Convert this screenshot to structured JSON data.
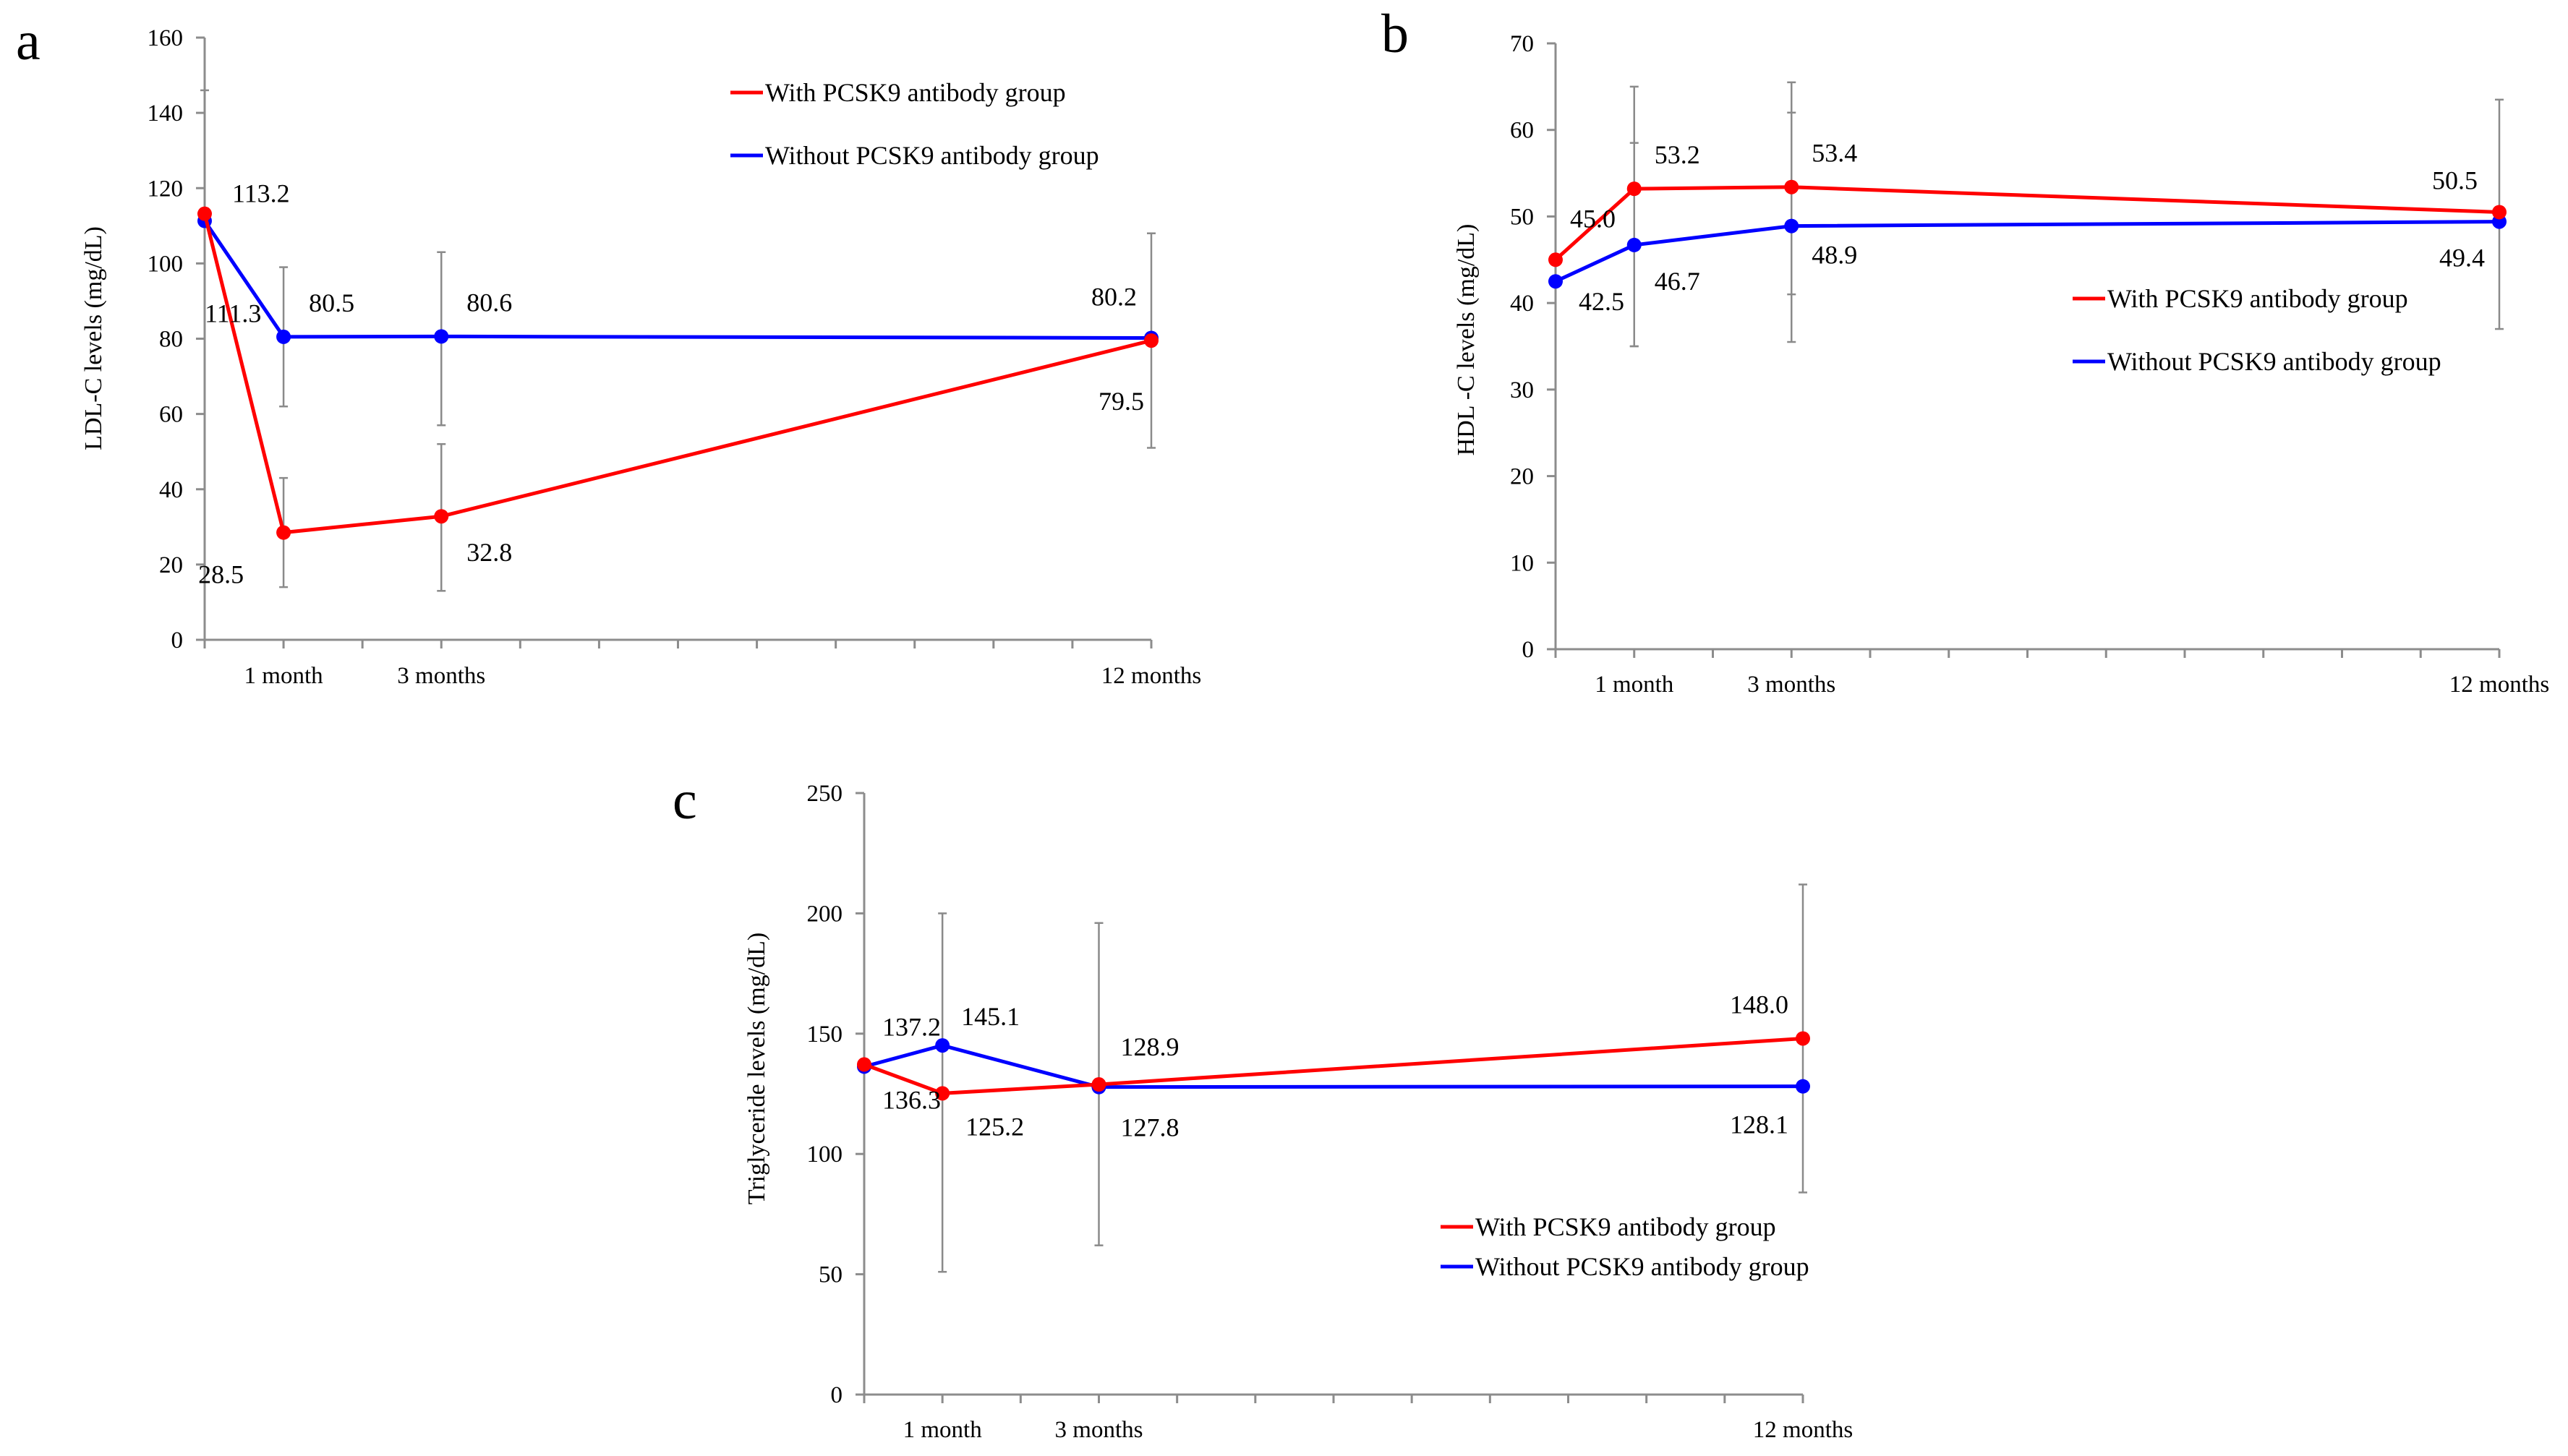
{
  "chart_data": [
    {
      "panel_label": "a",
      "type": "line",
      "ylabel": "LDL-C levels (mg/dL)",
      "ylim": [
        0,
        160
      ],
      "yticks": [
        0,
        20,
        40,
        60,
        80,
        100,
        120,
        140,
        160
      ],
      "x_labels": [
        "",
        "1 month",
        "3 months",
        "12 months"
      ],
      "x_values": [
        0,
        1,
        3,
        12
      ],
      "series": [
        {
          "name": "With PCSK9 antibody group",
          "color": "#ff0000",
          "values": [
            113.2,
            28.5,
            32.8,
            79.5
          ],
          "labels": [
            "113.2",
            "28.5",
            "32.8",
            "79.5"
          ],
          "err_low": [
            null,
            14,
            13,
            51
          ],
          "err_high": [
            null,
            43,
            52,
            108
          ]
        },
        {
          "name": "Without PCSK9 antibody group",
          "color": "#0000ff",
          "values": [
            111.3,
            80.5,
            80.6,
            80.2
          ],
          "labels": [
            "111.3",
            "80.5",
            "80.6",
            "80.2"
          ],
          "err_low": [
            null,
            62,
            57,
            null
          ],
          "err_high": [
            146,
            99,
            103,
            null
          ]
        }
      ]
    },
    {
      "panel_label": "b",
      "type": "line",
      "ylabel": "HDL -C levels (mg/dL)",
      "ylim": [
        0,
        70
      ],
      "yticks": [
        0,
        10,
        20,
        30,
        40,
        50,
        60,
        70
      ],
      "x_labels": [
        "",
        "1 month",
        "3 months",
        "12 months"
      ],
      "x_values": [
        0,
        1,
        3,
        12
      ],
      "series": [
        {
          "name": "With PCSK9 antibody group",
          "color": "#ff0000",
          "values": [
            45.0,
            53.2,
            53.4,
            50.5
          ],
          "labels": [
            "45.0",
            "53.2",
            "53.4",
            "50.5"
          ],
          "err_low": [
            null,
            35,
            35.5,
            37
          ],
          "err_high": [
            null,
            65,
            65.5,
            63.5
          ]
        },
        {
          "name": "Without PCSK9 antibody group",
          "color": "#0000ff",
          "values": [
            42.5,
            46.7,
            48.9,
            49.4
          ],
          "labels": [
            "42.5",
            "46.7",
            "48.9",
            "49.4"
          ],
          "err_low": [
            null,
            35,
            41,
            null
          ],
          "err_high": [
            null,
            58.5,
            62,
            null
          ]
        }
      ]
    },
    {
      "panel_label": "c",
      "type": "line",
      "ylabel": "Triglyceride levels (mg/dL)",
      "ylim": [
        0,
        250
      ],
      "yticks": [
        0,
        50,
        100,
        150,
        200,
        250
      ],
      "x_labels": [
        "",
        "1 month",
        "3 months",
        "12 months"
      ],
      "x_values": [
        0,
        1,
        3,
        12
      ],
      "series": [
        {
          "name": "With PCSK9 antibody group",
          "color": "#ff0000",
          "values": [
            137.2,
            125.2,
            128.9,
            148.0
          ],
          "labels": [
            "137.2",
            "125.2",
            "128.9",
            "148.0"
          ],
          "err_low": [
            null,
            51,
            62,
            84
          ],
          "err_high": [
            null,
            200,
            196,
            212
          ]
        },
        {
          "name": "Without PCSK9 antibody group",
          "color": "#0000ff",
          "values": [
            136.3,
            145.1,
            127.8,
            128.1
          ],
          "labels": [
            "136.3",
            "145.1",
            "127.8",
            "128.1"
          ],
          "err_low": [
            null,
            null,
            null,
            null
          ],
          "err_high": [
            null,
            null,
            null,
            null
          ]
        }
      ]
    }
  ]
}
